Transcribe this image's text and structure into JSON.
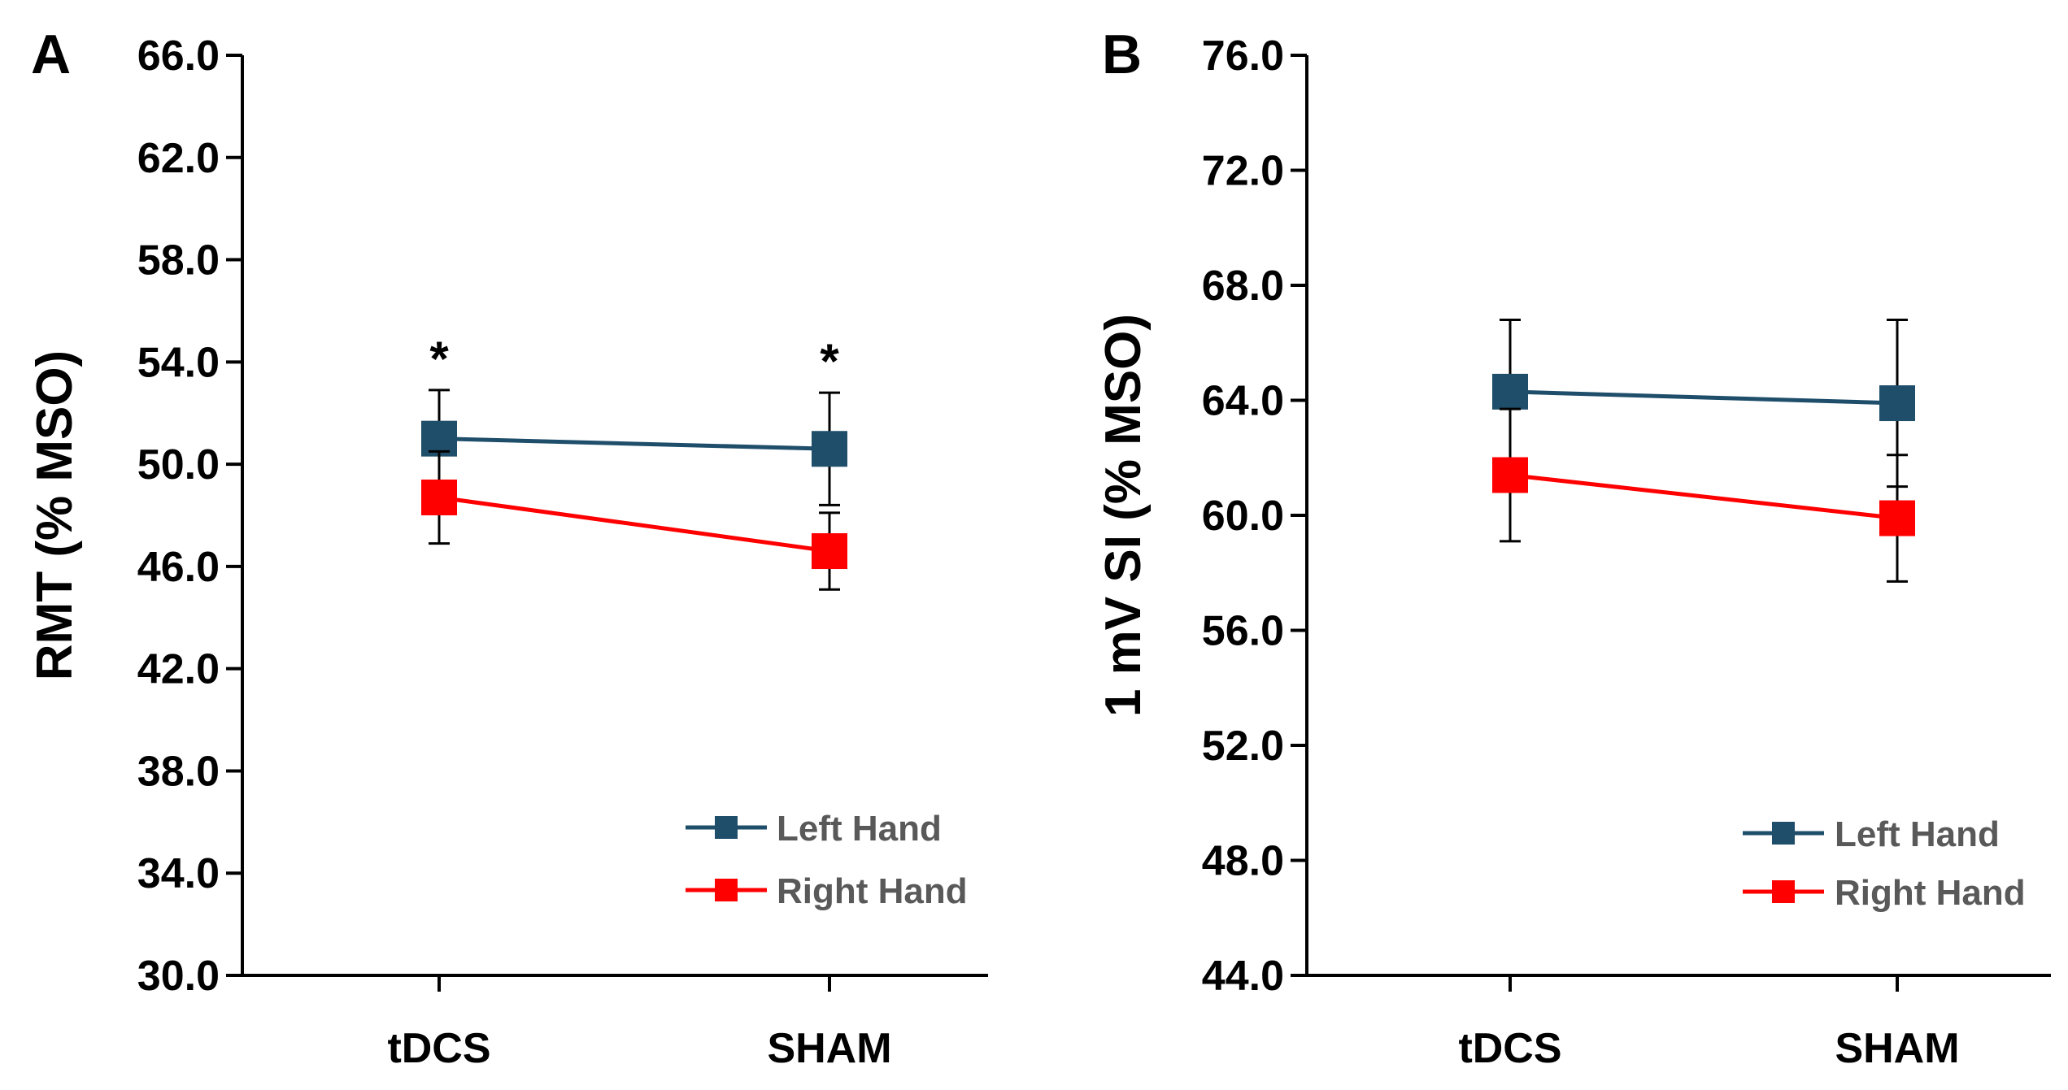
{
  "chart_data": [
    {
      "panel": "A",
      "type": "line",
      "title": "",
      "xlabel": "",
      "ylabel": "RMT (% MSO)",
      "categories": [
        "tDCS",
        "SHAM"
      ],
      "ylim": [
        30,
        66
      ],
      "yticks": [
        30,
        34,
        38,
        42,
        46,
        50,
        54,
        58,
        62,
        66
      ],
      "ytick_labels": [
        "30.0",
        "34.0",
        "38.0",
        "42.0",
        "46.0",
        "50.0",
        "54.0",
        "58.0",
        "62.0",
        "66.0"
      ],
      "legend_position": "bottom-right",
      "series": [
        {
          "name": "Left Hand",
          "color": "#1F4E6B",
          "values": [
            51.0,
            50.6
          ],
          "error": [
            1.9,
            2.2
          ]
        },
        {
          "name": "Right Hand",
          "color": "#FF0000",
          "values": [
            48.7,
            46.6
          ],
          "error": [
            1.8,
            1.5
          ]
        }
      ],
      "annotations": [
        {
          "text": "*",
          "category": "tDCS"
        },
        {
          "text": "*",
          "category": "SHAM"
        }
      ]
    },
    {
      "panel": "B",
      "type": "line",
      "title": "",
      "xlabel": "",
      "ylabel": "1 mV SI (% MSO)",
      "categories": [
        "tDCS",
        "SHAM"
      ],
      "ylim": [
        44,
        76
      ],
      "yticks": [
        44,
        48,
        52,
        56,
        60,
        64,
        68,
        72,
        76
      ],
      "ytick_labels": [
        "44.0",
        "48.0",
        "52.0",
        "56.0",
        "60.0",
        "64.0",
        "68.0",
        "72.0",
        "76.0"
      ],
      "legend_position": "bottom-right",
      "series": [
        {
          "name": "Left Hand",
          "color": "#1F4E6B",
          "values": [
            64.3,
            63.9
          ],
          "error": [
            2.5,
            2.9
          ]
        },
        {
          "name": "Right Hand",
          "color": "#FF0000",
          "values": [
            61.4,
            59.9
          ],
          "error": [
            2.3,
            2.2
          ]
        }
      ],
      "annotations": []
    }
  ]
}
